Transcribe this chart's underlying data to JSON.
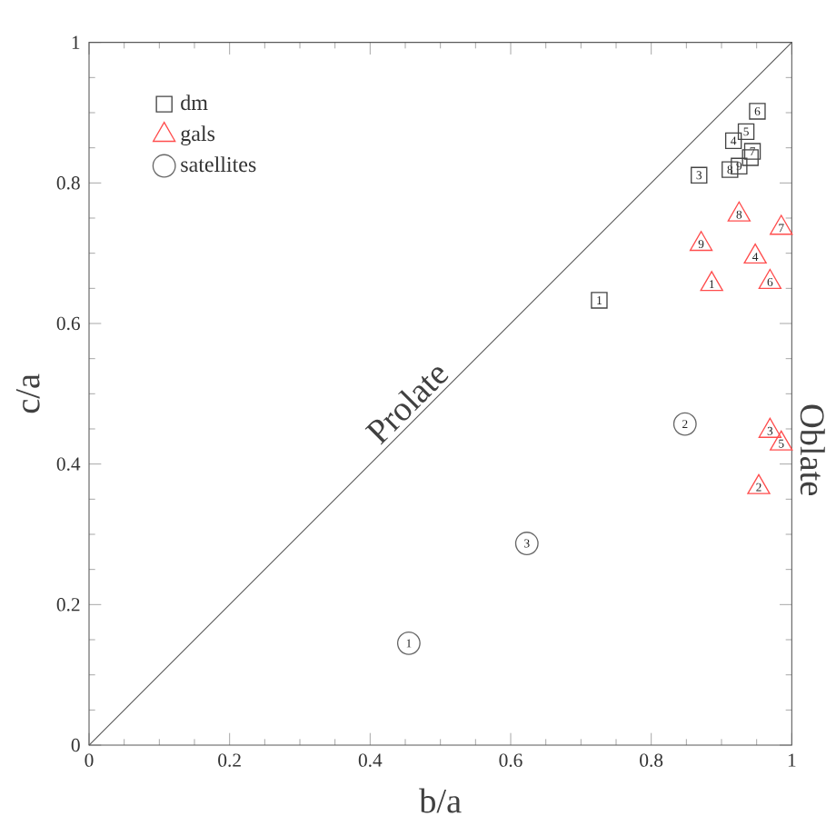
{
  "chart_data": {
    "type": "scatter",
    "xlabel": "b/a",
    "ylabel": "c/a",
    "xlim": [
      0,
      1
    ],
    "ylim": [
      0,
      1
    ],
    "xticks": [
      0,
      0.2,
      0.4,
      0.6,
      0.8,
      1
    ],
    "yticks": [
      0,
      0.2,
      0.4,
      0.6,
      0.8,
      1
    ],
    "legend": "top left",
    "grid": false,
    "series": [
      {
        "name": "dm",
        "color": "#444444",
        "marker": "square",
        "x": [
          0.726,
          0.941,
          0.868,
          0.917,
          0.935,
          0.951,
          0.944,
          0.912,
          0.925
        ],
        "values": [
          0.633,
          0.836,
          0.811,
          0.86,
          0.873,
          0.902,
          0.845,
          0.819,
          0.824
        ]
      },
      {
        "name": "gals",
        "color": "#ff4d4d",
        "marker": "triangle",
        "x": [
          0.886,
          0.953,
          0.969,
          0.948,
          0.985,
          0.969,
          0.985,
          0.925,
          0.871
        ],
        "values": [
          0.656,
          0.367,
          0.447,
          0.695,
          0.429,
          0.659,
          0.736,
          0.755,
          0.713
        ]
      },
      {
        "name": "satellites",
        "color": "#666666",
        "marker": "circle",
        "x": [
          0.455,
          0.848,
          0.623
        ],
        "values": [
          0.145,
          0.457,
          0.287
        ]
      },
      {
        "type": "line",
        "color": "#555555",
        "marker": "none",
        "x": [
          0,
          1
        ],
        "values": [
          0,
          1
        ]
      }
    ],
    "annotations": [
      {
        "text": "Prolate",
        "x": 0.47,
        "y": 0.47
      },
      "Oblate",
      {
        "text": "1",
        "x": 0.726,
        "y": 0.633
      },
      {
        "text": "3",
        "x": 0.868,
        "y": 0.811
      },
      {
        "text": "4",
        "x": 0.917,
        "y": 0.86
      },
      {
        "text": "5",
        "x": 0.935,
        "y": 0.873
      },
      {
        "text": "6",
        "x": 0.951,
        "y": 0.902
      },
      {
        "text": "7",
        "x": 0.944,
        "y": 0.845
      },
      {
        "text": "8",
        "x": 0.912,
        "y": 0.819
      },
      {
        "text": "9",
        "x": 0.925,
        "y": 0.824
      },
      {
        "text": "1",
        "x": 0.886,
        "y": 0.656
      },
      {
        "text": "2",
        "x": 0.953,
        "y": 0.367
      },
      {
        "text": "3",
        "x": 0.969,
        "y": 0.447
      },
      {
        "text": "4",
        "x": 0.948,
        "y": 0.695
      },
      {
        "text": "5",
        "x": 0.985,
        "y": 0.429
      },
      {
        "text": "6",
        "x": 0.969,
        "y": 0.659
      },
      {
        "text": "7",
        "x": 0.985,
        "y": 0.736
      },
      {
        "text": "8",
        "x": 0.925,
        "y": 0.755
      },
      {
        "text": "9",
        "x": 0.871,
        "y": 0.713
      },
      {
        "text": "1",
        "x": 0.455,
        "y": 0.145
      },
      {
        "text": "2",
        "x": 0.848,
        "y": 0.457
      },
      {
        "text": "3",
        "x": 0.623,
        "y": 0.287
      }
    ]
  }
}
